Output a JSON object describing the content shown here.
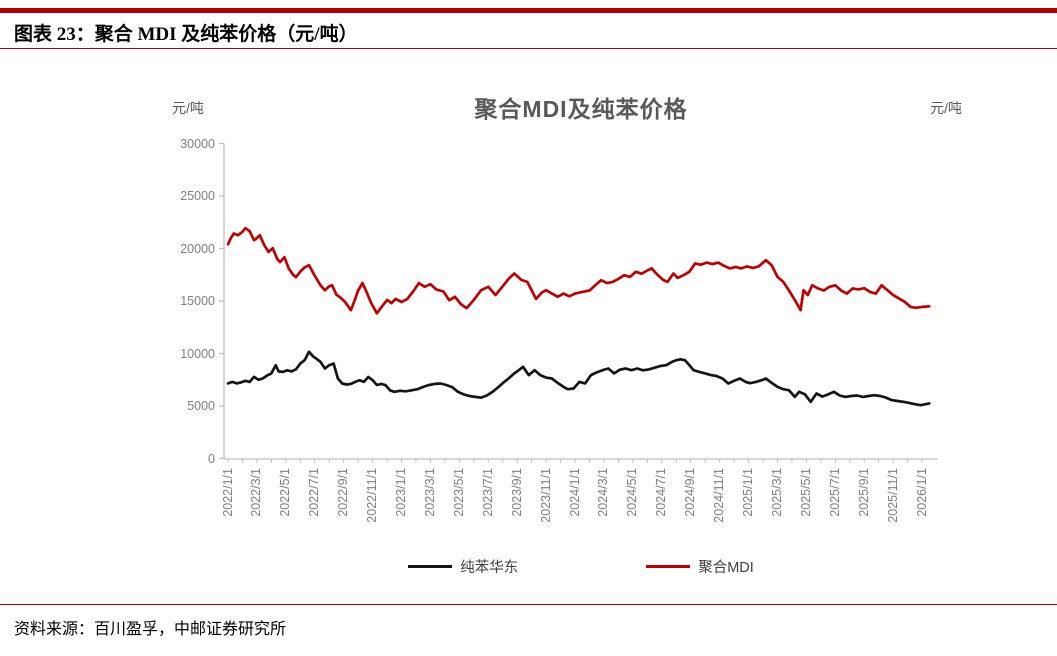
{
  "page": {
    "header_title": "图表 23：聚合 MDI 及纯苯价格（元/吨）",
    "source_note": "资料来源：百川盈孚，中邮证券研究所"
  },
  "chart_data": {
    "type": "line",
    "title": "聚合MDI及纯苯价格",
    "y_axis_label_left": "元/吨",
    "y_axis_label_right": "元/吨",
    "xlabel": "",
    "ylabel": "元/吨",
    "ylim": [
      0,
      30000
    ],
    "y_ticks": [
      0,
      5000,
      10000,
      15000,
      20000,
      25000,
      30000
    ],
    "grid": false,
    "legend_position": "bottom",
    "x_unit": "months since 2022/1/1",
    "x_tick_step_months": 2,
    "x_tick_labels": [
      "2022/1/1",
      "2022/3/1",
      "2022/5/1",
      "2022/7/1",
      "2022/9/1",
      "2022/11/1",
      "2023/1/1",
      "2023/3/1",
      "2023/5/1",
      "2023/7/1",
      "2023/9/1",
      "2023/11/1",
      "2024/1/1",
      "2024/3/1",
      "2024/5/1",
      "2024/7/1",
      "2024/9/1",
      "2024/11/1",
      "2025/1/1",
      "2025/3/1",
      "2025/5/1",
      "2025/7/1",
      "2025/9/1",
      "2025/11/1",
      "2026/1/1"
    ],
    "colors": {
      "accent_rule": "#b40000",
      "mdi_line": "#c00000",
      "benzene_line": "#151515",
      "axis": "#bfbfbf",
      "tick_text": "#7f7f7f",
      "title_text": "#595959"
    },
    "series": [
      {
        "id": "pure-benzene-east",
        "name": "纯苯华东",
        "color": "#151515",
        "points": [
          [
            0,
            7150
          ],
          [
            0.3,
            7300
          ],
          [
            0.6,
            7150
          ],
          [
            0.9,
            7250
          ],
          [
            1.2,
            7400
          ],
          [
            1.5,
            7300
          ],
          [
            1.8,
            7770
          ],
          [
            2.1,
            7500
          ],
          [
            2.4,
            7620
          ],
          [
            2.7,
            7900
          ],
          [
            3,
            8100
          ],
          [
            3.3,
            8890
          ],
          [
            3.5,
            8300
          ],
          [
            3.8,
            8250
          ],
          [
            4.1,
            8400
          ],
          [
            4.4,
            8300
          ],
          [
            4.7,
            8500
          ],
          [
            5,
            9050
          ],
          [
            5.3,
            9360
          ],
          [
            5.6,
            10160
          ],
          [
            5.9,
            9700
          ],
          [
            6.1,
            9520
          ],
          [
            6.4,
            9200
          ],
          [
            6.7,
            8570
          ],
          [
            7,
            8890
          ],
          [
            7.3,
            9050
          ],
          [
            7.6,
            7620
          ],
          [
            7.9,
            7140
          ],
          [
            8.2,
            7050
          ],
          [
            8.5,
            7100
          ],
          [
            8.8,
            7300
          ],
          [
            9.1,
            7460
          ],
          [
            9.4,
            7300
          ],
          [
            9.7,
            7770
          ],
          [
            10,
            7460
          ],
          [
            10.3,
            7000
          ],
          [
            10.6,
            7100
          ],
          [
            10.9,
            6980
          ],
          [
            11.2,
            6500
          ],
          [
            11.5,
            6350
          ],
          [
            11.9,
            6450
          ],
          [
            12.3,
            6400
          ],
          [
            12.7,
            6500
          ],
          [
            13.1,
            6600
          ],
          [
            13.5,
            6820
          ],
          [
            13.9,
            7000
          ],
          [
            14.3,
            7100
          ],
          [
            14.7,
            7140
          ],
          [
            15.1,
            7000
          ],
          [
            15.5,
            6800
          ],
          [
            15.9,
            6350
          ],
          [
            16.3,
            6100
          ],
          [
            16.7,
            5950
          ],
          [
            17.1,
            5870
          ],
          [
            17.5,
            5800
          ],
          [
            17.9,
            6000
          ],
          [
            18.3,
            6350
          ],
          [
            18.7,
            6800
          ],
          [
            19.1,
            7300
          ],
          [
            19.4,
            7620
          ],
          [
            19.8,
            8100
          ],
          [
            20.1,
            8400
          ],
          [
            20.4,
            8730
          ],
          [
            20.8,
            7940
          ],
          [
            21.2,
            8410
          ],
          [
            21.6,
            7940
          ],
          [
            22,
            7700
          ],
          [
            22.4,
            7620
          ],
          [
            22.8,
            7200
          ],
          [
            23.2,
            6820
          ],
          [
            23.5,
            6600
          ],
          [
            23.9,
            6670
          ],
          [
            24.3,
            7300
          ],
          [
            24.7,
            7150
          ],
          [
            25.1,
            7940
          ],
          [
            25.5,
            8200
          ],
          [
            25.9,
            8410
          ],
          [
            26.3,
            8570
          ],
          [
            26.7,
            8100
          ],
          [
            27.1,
            8460
          ],
          [
            27.5,
            8570
          ],
          [
            27.9,
            8410
          ],
          [
            28.3,
            8570
          ],
          [
            28.7,
            8400
          ],
          [
            29.1,
            8490
          ],
          [
            29.5,
            8650
          ],
          [
            29.9,
            8810
          ],
          [
            30.3,
            8890
          ],
          [
            30.7,
            9200
          ],
          [
            31,
            9360
          ],
          [
            31.3,
            9450
          ],
          [
            31.6,
            9360
          ],
          [
            31.9,
            8900
          ],
          [
            32.2,
            8410
          ],
          [
            32.6,
            8250
          ],
          [
            33,
            8100
          ],
          [
            33.4,
            7940
          ],
          [
            33.8,
            7850
          ],
          [
            34.2,
            7620
          ],
          [
            34.6,
            7140
          ],
          [
            35,
            7400
          ],
          [
            35.4,
            7620
          ],
          [
            35.8,
            7300
          ],
          [
            36.1,
            7170
          ],
          [
            36.5,
            7300
          ],
          [
            36.9,
            7460
          ],
          [
            37.2,
            7620
          ],
          [
            37.6,
            7200
          ],
          [
            38,
            6820
          ],
          [
            38.4,
            6600
          ],
          [
            38.8,
            6500
          ],
          [
            39.2,
            5870
          ],
          [
            39.5,
            6350
          ],
          [
            39.9,
            6100
          ],
          [
            40.3,
            5390
          ],
          [
            40.7,
            6190
          ],
          [
            41.1,
            5900
          ],
          [
            41.5,
            6100
          ],
          [
            41.9,
            6350
          ],
          [
            42.3,
            6000
          ],
          [
            42.7,
            5870
          ],
          [
            43.1,
            5950
          ],
          [
            43.5,
            6000
          ],
          [
            43.9,
            5870
          ],
          [
            44.3,
            5950
          ],
          [
            44.7,
            6030
          ],
          [
            45.1,
            5950
          ],
          [
            45.5,
            5800
          ],
          [
            45.9,
            5560
          ],
          [
            46.3,
            5480
          ],
          [
            46.7,
            5400
          ],
          [
            47.1,
            5300
          ],
          [
            47.5,
            5170
          ],
          [
            47.9,
            5080
          ],
          [
            48.5,
            5250
          ]
        ]
      },
      {
        "id": "polymeric-mdi",
        "name": "聚合MDI",
        "color": "#c00000",
        "points": [
          [
            0,
            20400
          ],
          [
            0.2,
            21000
          ],
          [
            0.4,
            21430
          ],
          [
            0.7,
            21270
          ],
          [
            1,
            21600
          ],
          [
            1.2,
            21930
          ],
          [
            1.5,
            21650
          ],
          [
            1.8,
            20790
          ],
          [
            2,
            21000
          ],
          [
            2.2,
            21270
          ],
          [
            2.5,
            20350
          ],
          [
            2.8,
            19680
          ],
          [
            3.1,
            20030
          ],
          [
            3.4,
            19000
          ],
          [
            3.6,
            18700
          ],
          [
            3.9,
            19180
          ],
          [
            4.2,
            18100
          ],
          [
            4.5,
            17500
          ],
          [
            4.7,
            17270
          ],
          [
            5,
            17800
          ],
          [
            5.3,
            18200
          ],
          [
            5.6,
            18410
          ],
          [
            6,
            17400
          ],
          [
            6.4,
            16500
          ],
          [
            6.7,
            16030
          ],
          [
            7,
            16400
          ],
          [
            7.2,
            16500
          ],
          [
            7.5,
            15600
          ],
          [
            7.8,
            15300
          ],
          [
            8.1,
            14900
          ],
          [
            8.5,
            14120
          ],
          [
            8.8,
            15200
          ],
          [
            9,
            16000
          ],
          [
            9.3,
            16700
          ],
          [
            9.6,
            15800
          ],
          [
            9.9,
            14800
          ],
          [
            10.3,
            13830
          ],
          [
            10.6,
            14400
          ],
          [
            11,
            15100
          ],
          [
            11.3,
            14800
          ],
          [
            11.6,
            15200
          ],
          [
            12,
            14900
          ],
          [
            12.4,
            15200
          ],
          [
            12.8,
            15900
          ],
          [
            13.2,
            16700
          ],
          [
            13.6,
            16350
          ],
          [
            14,
            16600
          ],
          [
            14.4,
            16100
          ],
          [
            14.9,
            15900
          ],
          [
            15.3,
            15080
          ],
          [
            15.7,
            15400
          ],
          [
            16.1,
            14700
          ],
          [
            16.5,
            14310
          ],
          [
            17,
            15100
          ],
          [
            17.5,
            16030
          ],
          [
            18,
            16350
          ],
          [
            18.5,
            15560
          ],
          [
            19,
            16400
          ],
          [
            19.4,
            17100
          ],
          [
            19.8,
            17620
          ],
          [
            20.3,
            17000
          ],
          [
            20.7,
            16820
          ],
          [
            21.3,
            15200
          ],
          [
            21.7,
            15800
          ],
          [
            22,
            16030
          ],
          [
            22.4,
            15700
          ],
          [
            22.8,
            15400
          ],
          [
            23.2,
            15700
          ],
          [
            23.6,
            15450
          ],
          [
            24,
            15700
          ],
          [
            24.5,
            15870
          ],
          [
            25,
            16000
          ],
          [
            25.4,
            16500
          ],
          [
            25.8,
            16980
          ],
          [
            26.2,
            16700
          ],
          [
            26.6,
            16820
          ],
          [
            27,
            17100
          ],
          [
            27.4,
            17460
          ],
          [
            27.8,
            17300
          ],
          [
            28.2,
            17780
          ],
          [
            28.6,
            17600
          ],
          [
            29,
            17900
          ],
          [
            29.3,
            18100
          ],
          [
            29.7,
            17500
          ],
          [
            30.1,
            17000
          ],
          [
            30.4,
            16820
          ],
          [
            30.8,
            17620
          ],
          [
            31.1,
            17200
          ],
          [
            31.5,
            17460
          ],
          [
            31.9,
            17780
          ],
          [
            32.3,
            18570
          ],
          [
            32.7,
            18460
          ],
          [
            33.1,
            18660
          ],
          [
            33.5,
            18510
          ],
          [
            33.9,
            18660
          ],
          [
            34.3,
            18350
          ],
          [
            34.7,
            18100
          ],
          [
            35.1,
            18250
          ],
          [
            35.5,
            18100
          ],
          [
            35.9,
            18300
          ],
          [
            36.3,
            18150
          ],
          [
            36.7,
            18300
          ],
          [
            37.2,
            18890
          ],
          [
            37.6,
            18400
          ],
          [
            38,
            17300
          ],
          [
            38.4,
            16820
          ],
          [
            38.8,
            16000
          ],
          [
            39.2,
            15100
          ],
          [
            39.6,
            14120
          ],
          [
            39.8,
            16030
          ],
          [
            40.1,
            15560
          ],
          [
            40.4,
            16500
          ],
          [
            40.8,
            16200
          ],
          [
            41.2,
            16000
          ],
          [
            41.6,
            16350
          ],
          [
            42,
            16500
          ],
          [
            42.4,
            16000
          ],
          [
            42.8,
            15700
          ],
          [
            43.2,
            16200
          ],
          [
            43.6,
            16100
          ],
          [
            44,
            16220
          ],
          [
            44.4,
            15870
          ],
          [
            44.8,
            15700
          ],
          [
            45.2,
            16500
          ],
          [
            45.6,
            16030
          ],
          [
            46,
            15560
          ],
          [
            46.4,
            15250
          ],
          [
            46.8,
            14920
          ],
          [
            47.2,
            14440
          ],
          [
            47.6,
            14350
          ],
          [
            48,
            14440
          ],
          [
            48.5,
            14500
          ]
        ]
      }
    ]
  }
}
